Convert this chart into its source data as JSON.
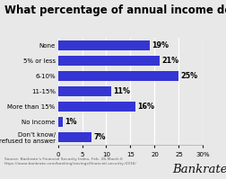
{
  "title": "What percentage of annual income do you save?",
  "categories": [
    "None",
    "5% or less",
    "6-10%",
    "11-15%",
    "More than 15%",
    "No income",
    "Don’t know/\nrefused to answer"
  ],
  "values": [
    19,
    21,
    25,
    11,
    16,
    1,
    7
  ],
  "bar_color": "#3535d4",
  "xlim": [
    0,
    30
  ],
  "xtick_vals": [
    0,
    5,
    10,
    15,
    20,
    25,
    30
  ],
  "background_color": "#e8e8e8",
  "plot_bg_color": "#e8e8e8",
  "title_fontsize": 8.5,
  "label_fontsize": 5.8,
  "ytick_fontsize": 5.0,
  "xtick_fontsize": 5.0,
  "source_text": "Source: Bankrate's Financial Security Index, Feb. 28-March 6\nhttps://www.bankrate.com/banking/savings/financial-security-0316/",
  "brand_text": "Bankrate",
  "footer_bg": "#ffffff",
  "separator_color": "#cccccc"
}
